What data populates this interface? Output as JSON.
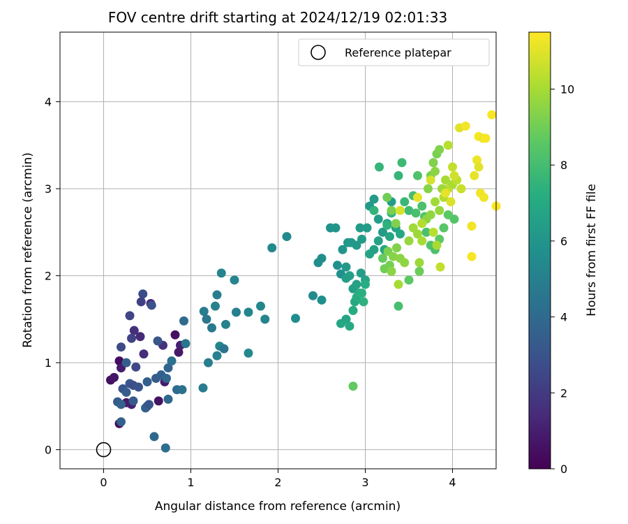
{
  "chart_data": {
    "type": "scatter",
    "title": "FOV centre drift starting at 2024/12/19 02:01:33",
    "xlabel": "Angular distance from reference (arcmin)",
    "ylabel": "Rotation from reference (arcmin)",
    "xlim": [
      -0.5,
      4.5
    ],
    "ylim": [
      -0.22,
      4.8
    ],
    "xticks": [
      0,
      1,
      2,
      3,
      4
    ],
    "yticks": [
      0,
      1,
      2,
      3,
      4
    ],
    "grid": true,
    "colormap": "viridis",
    "colorbar": {
      "label": "Hours from first FF file",
      "range": [
        0,
        11.5
      ],
      "ticks": [
        0,
        2,
        4,
        6,
        8,
        10
      ]
    },
    "legend": {
      "position": "top-right",
      "entries": [
        {
          "label": "Reference platepar",
          "marker": "open-circle",
          "color": "#000000"
        }
      ]
    },
    "reference_point": {
      "x": 0,
      "y": 0
    },
    "points": [
      [
        0.08,
        0.8,
        0.5
      ],
      [
        0.12,
        0.83,
        0.7
      ],
      [
        0.18,
        1.02,
        0.4
      ],
      [
        0.2,
        0.94,
        0.9
      ],
      [
        0.18,
        0.3,
        0.3
      ],
      [
        0.26,
        0.54,
        0.8
      ],
      [
        0.32,
        0.52,
        1.0
      ],
      [
        0.35,
        1.37,
        1.6
      ],
      [
        0.42,
        1.3,
        1.4
      ],
      [
        0.54,
        1.68,
        1.2
      ],
      [
        0.63,
        0.56,
        0.6
      ],
      [
        0.7,
        0.78,
        0.9
      ],
      [
        0.82,
        1.32,
        0.5
      ],
      [
        0.86,
        1.12,
        0.8
      ],
      [
        0.88,
        1.2,
        1.0
      ],
      [
        0.5,
        0.5,
        1.8
      ],
      [
        0.68,
        1.2,
        1.7
      ],
      [
        0.46,
        1.1,
        1.5
      ],
      [
        0.2,
        0.32,
        3.6
      ],
      [
        0.22,
        0.7,
        3.0
      ],
      [
        0.26,
        0.66,
        3.4
      ],
      [
        0.3,
        0.76,
        3.2
      ],
      [
        0.34,
        0.74,
        2.8
      ],
      [
        0.4,
        0.72,
        3.0
      ],
      [
        0.48,
        0.48,
        3.6
      ],
      [
        0.45,
        1.79,
        2.7
      ],
      [
        0.55,
        1.66,
        2.9
      ],
      [
        0.62,
        1.25,
        3.1
      ],
      [
        0.3,
        1.54,
        2.4
      ],
      [
        0.32,
        1.28,
        2.3
      ],
      [
        0.37,
        0.95,
        2.5
      ],
      [
        0.2,
        1.18,
        2.6
      ],
      [
        0.16,
        0.55,
        3.3
      ],
      [
        0.26,
        1.0,
        3.5
      ],
      [
        0.6,
        0.82,
        3.4
      ],
      [
        0.66,
        0.86,
        3.6
      ],
      [
        0.72,
        0.82,
        3.8
      ],
      [
        0.74,
        0.94,
        3.7
      ],
      [
        0.52,
        0.52,
        3.1
      ],
      [
        0.58,
        0.15,
        3.9
      ],
      [
        0.71,
        0.02,
        4.2
      ],
      [
        0.74,
        0.58,
        3.9
      ],
      [
        0.78,
        1.02,
        4.3
      ],
      [
        0.84,
        0.69,
        4.1
      ],
      [
        0.9,
        0.69,
        4.3
      ],
      [
        0.92,
        1.48,
        4.0
      ],
      [
        0.94,
        1.22,
        4.5
      ],
      [
        0.43,
        1.7,
        2.2
      ],
      [
        0.2,
        0.52,
        3.7
      ],
      [
        0.34,
        0.56,
        3.3
      ],
      [
        0.5,
        0.78,
        3.5
      ],
      [
        1.14,
        0.71,
        4.8
      ],
      [
        1.15,
        1.59,
        4.8
      ],
      [
        1.18,
        1.5,
        4.6
      ],
      [
        1.2,
        1.0,
        4.9
      ],
      [
        1.24,
        1.4,
        4.7
      ],
      [
        1.28,
        1.65,
        5.1
      ],
      [
        1.3,
        1.78,
        4.9
      ],
      [
        1.3,
        1.08,
        5.0
      ],
      [
        1.33,
        1.19,
        5.3
      ],
      [
        1.35,
        2.03,
        5.2
      ],
      [
        1.38,
        1.16,
        4.4
      ],
      [
        1.4,
        1.44,
        5.1
      ],
      [
        1.5,
        1.95,
        5.2
      ],
      [
        1.52,
        1.58,
        5.0
      ],
      [
        1.66,
        1.58,
        5.3
      ],
      [
        1.66,
        1.11,
        5.4
      ],
      [
        1.8,
        1.65,
        5.3
      ],
      [
        1.85,
        1.5,
        5.2
      ],
      [
        1.93,
        2.32,
        5.4
      ],
      [
        2.1,
        2.45,
        5.5
      ],
      [
        2.2,
        1.51,
        5.6
      ],
      [
        2.4,
        1.77,
        5.5
      ],
      [
        2.5,
        1.72,
        5.7
      ],
      [
        2.46,
        2.15,
        5.6
      ],
      [
        2.5,
        2.2,
        5.6
      ],
      [
        2.6,
        2.55,
        5.9
      ],
      [
        2.66,
        2.55,
        6.0
      ],
      [
        2.68,
        2.12,
        5.8
      ],
      [
        2.72,
        2.02,
        5.8
      ],
      [
        2.74,
        2.3,
        6.0
      ],
      [
        2.78,
        2.1,
        6.1
      ],
      [
        2.8,
        2.38,
        6.1
      ],
      [
        2.84,
        2.38,
        6.2
      ],
      [
        2.9,
        2.35,
        6.2
      ],
      [
        2.94,
        2.55,
        6.3
      ],
      [
        2.96,
        2.42,
        6.3
      ],
      [
        3.02,
        2.55,
        6.3
      ],
      [
        3.05,
        2.8,
        6.2
      ],
      [
        3.1,
        2.88,
        6.3
      ],
      [
        3.15,
        2.65,
        6.4
      ],
      [
        3.2,
        2.5,
        6.3
      ],
      [
        3.25,
        2.6,
        6.5
      ],
      [
        3.3,
        2.85,
        6.4
      ],
      [
        2.78,
        1.97,
        6.5
      ],
      [
        2.82,
        2.0,
        6.5
      ],
      [
        2.86,
        1.85,
        6.5
      ],
      [
        2.9,
        1.9,
        6.6
      ],
      [
        2.95,
        2.03,
        6.5
      ],
      [
        3.0,
        1.95,
        6.7
      ],
      [
        3.05,
        2.25,
        6.7
      ],
      [
        3.1,
        2.3,
        6.6
      ],
      [
        3.15,
        2.4,
        6.6
      ],
      [
        3.22,
        2.3,
        6.8
      ],
      [
        3.28,
        2.45,
        6.8
      ],
      [
        3.35,
        2.55,
        6.8
      ],
      [
        3.4,
        2.48,
        6.9
      ],
      [
        2.72,
        1.45,
        6.9
      ],
      [
        2.78,
        1.5,
        6.8
      ],
      [
        2.82,
        1.42,
        7.0
      ],
      [
        2.86,
        1.6,
        7.1
      ],
      [
        2.88,
        1.7,
        7.0
      ],
      [
        2.9,
        1.75,
        7.1
      ],
      [
        2.93,
        1.8,
        7.2
      ],
      [
        2.96,
        1.8,
        7.3
      ],
      [
        2.98,
        1.7,
        7.4
      ],
      [
        3.0,
        1.9,
        7.2
      ],
      [
        3.1,
        2.75,
        7.5
      ],
      [
        3.16,
        3.25,
        7.6
      ],
      [
        3.25,
        2.58,
        7.4
      ],
      [
        3.3,
        2.72,
        7.5
      ],
      [
        3.38,
        3.15,
        7.6
      ],
      [
        3.42,
        3.3,
        7.8
      ],
      [
        3.45,
        2.85,
        7.7
      ],
      [
        3.5,
        2.75,
        7.9
      ],
      [
        3.55,
        2.92,
        8.0
      ],
      [
        3.58,
        2.72,
        8.1
      ],
      [
        3.6,
        3.15,
        8.3
      ],
      [
        3.65,
        2.8,
        8.2
      ],
      [
        3.68,
        2.68,
        8.4
      ],
      [
        3.7,
        2.5,
        8.1
      ],
      [
        3.75,
        2.35,
        8.3
      ],
      [
        3.8,
        2.3,
        8.2
      ],
      [
        3.85,
        2.42,
        8.6
      ],
      [
        3.9,
        2.55,
        8.5
      ],
      [
        3.95,
        2.7,
        8.6
      ],
      [
        4.02,
        2.65,
        8.4
      ],
      [
        3.38,
        1.65,
        8.1
      ],
      [
        3.5,
        1.95,
        8.6
      ],
      [
        3.62,
        2.05,
        8.9
      ],
      [
        2.86,
        0.73,
        8.7
      ],
      [
        3.2,
        2.2,
        8.8
      ],
      [
        3.22,
        2.08,
        9.0
      ],
      [
        3.26,
        2.28,
        9.2
      ],
      [
        3.28,
        2.12,
        9.1
      ],
      [
        3.32,
        2.22,
        9.4
      ],
      [
        3.36,
        2.32,
        9.3
      ],
      [
        3.4,
        2.2,
        9.5
      ],
      [
        3.45,
        2.15,
        9.6
      ],
      [
        3.5,
        2.4,
        9.7
      ],
      [
        3.55,
        2.55,
        9.9
      ],
      [
        3.6,
        2.48,
        9.8
      ],
      [
        3.65,
        2.4,
        10.0
      ],
      [
        3.7,
        2.65,
        9.5
      ],
      [
        3.75,
        2.7,
        9.6
      ],
      [
        3.8,
        2.85,
        9.9
      ],
      [
        3.85,
        2.75,
        9.7
      ],
      [
        3.9,
        2.9,
        10.2
      ],
      [
        3.95,
        3.0,
        10.4
      ],
      [
        4.0,
        3.05,
        10.1
      ],
      [
        3.25,
        2.9,
        9.0
      ],
      [
        3.3,
        2.75,
        9.2
      ],
      [
        3.35,
        2.6,
        9.3
      ],
      [
        3.3,
        2.05,
        9.5
      ],
      [
        3.38,
        1.9,
        10.0
      ],
      [
        3.62,
        2.15,
        9.8
      ],
      [
        3.65,
        2.6,
        10.2
      ],
      [
        3.78,
        2.5,
        10.3
      ],
      [
        3.82,
        2.35,
        10.0
      ],
      [
        3.72,
        3.0,
        9.4
      ],
      [
        3.75,
        3.15,
        9.2
      ],
      [
        3.8,
        3.2,
        9.5
      ],
      [
        3.78,
        3.3,
        9.3
      ],
      [
        3.82,
        3.4,
        9.1
      ],
      [
        3.85,
        3.45,
        9.3
      ],
      [
        3.88,
        3.0,
        9.8
      ],
      [
        3.92,
        3.1,
        10.0
      ],
      [
        3.95,
        3.5,
        10.3
      ],
      [
        4.0,
        3.25,
        10.5
      ],
      [
        4.05,
        3.1,
        10.4
      ],
      [
        4.1,
        3.0,
        10.6
      ],
      [
        3.86,
        2.1,
        10.5
      ],
      [
        4.02,
        3.15,
        10.7
      ],
      [
        4.08,
        3.7,
        11.0
      ],
      [
        4.15,
        3.72,
        11.3
      ],
      [
        4.25,
        3.15,
        11.1
      ],
      [
        4.28,
        3.33,
        11.2
      ],
      [
        4.3,
        3.6,
        11.4
      ],
      [
        4.32,
        2.95,
        11.3
      ],
      [
        4.35,
        3.58,
        11.2
      ],
      [
        4.38,
        3.58,
        11.4
      ],
      [
        4.3,
        3.25,
        11.0
      ],
      [
        4.22,
        2.57,
        11.3
      ],
      [
        4.22,
        2.22,
        11.4
      ],
      [
        4.45,
        3.85,
        11.4
      ],
      [
        4.5,
        2.8,
        11.5
      ],
      [
        3.75,
        3.1,
        10.8
      ],
      [
        3.92,
        2.95,
        11.1
      ],
      [
        3.98,
        2.85,
        10.9
      ],
      [
        4.36,
        2.9,
        11.3
      ],
      [
        3.6,
        2.9,
        11.1
      ],
      [
        3.4,
        2.75,
        10.8
      ]
    ]
  }
}
